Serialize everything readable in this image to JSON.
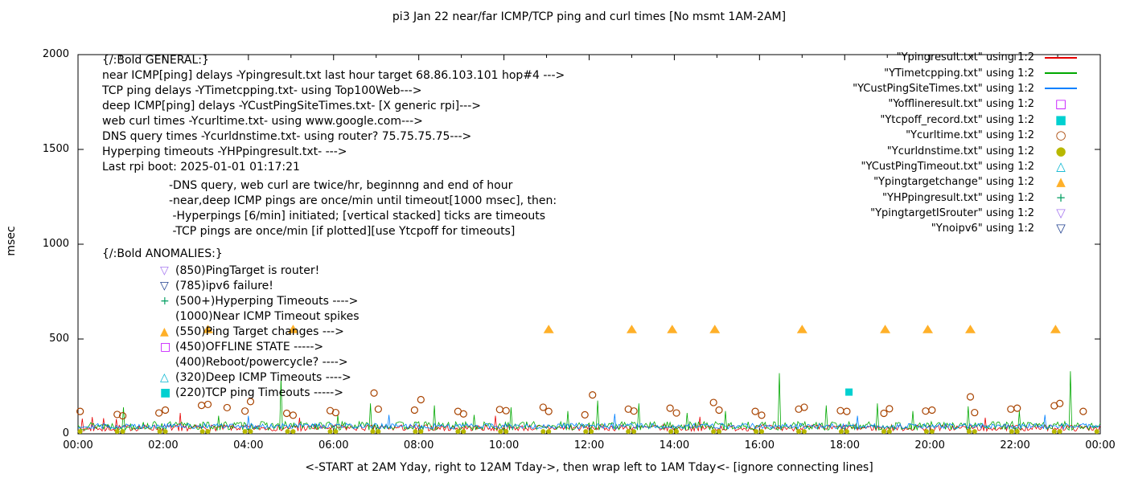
{
  "title": "pi3 Jan 22  near/far ICMP/TCP ping and curl times [No msmt 1AM-2AM]",
  "ylabel": "msec",
  "xlabel": "<-START at 2AM Yday, right to 12AM Tday->, then wrap left to 1AM Tday<- [ignore connecting lines]",
  "legend": [
    {
      "label": "\"Ypingresult.txt\" using 1:2",
      "marker": "line",
      "color": "#e60000"
    },
    {
      "label": "\"YTimetcpping.txt\" using 1:2",
      "marker": "line",
      "color": "#00a800"
    },
    {
      "label": "\"YCustPingSiteTimes.txt\" using 1:2",
      "marker": "line",
      "color": "#0080ff"
    },
    {
      "label": "\"Yofflineresult.txt\" using 1:2",
      "marker": "square-open",
      "color": "#c000ff"
    },
    {
      "label": "\"Ytcpoff_record.txt\" using 1:2",
      "marker": "square-filled",
      "color": "#00d0d0"
    },
    {
      "label": "\"Ycurltime.txt\" using 1:2",
      "marker": "circle-open",
      "color": "#a84300"
    },
    {
      "label": "\"Ycurldnstime.txt\" using 1:2",
      "marker": "circle-filled",
      "color": "#b8b800"
    },
    {
      "label": "\"YCustPingTimeout.txt\" using 1:2",
      "marker": "tri-up-open",
      "color": "#00b4d0"
    },
    {
      "label": "\"Ypingtargetchange\" using 1:2",
      "marker": "tri-up-filled",
      "color": "#ffb029"
    },
    {
      "label": "\"YHPpingresult.txt\" using 1:2",
      "marker": "plus",
      "color": "#009e60"
    },
    {
      "label": "\"YpingtargetISrouter\" using 1:2",
      "marker": "tri-down-open",
      "color": "#a678f0"
    },
    {
      "label": "\"Ynoipv6\" using 1:2",
      "marker": "tri-down-open",
      "color": "#1f3f8f"
    }
  ],
  "annotations": {
    "general": [
      "{/:Bold GENERAL:}",
      "near ICMP[ping] delays -Ypingresult.txt last hour target 68.86.103.101 hop#4 --->",
      "TCP ping delays -YTimetcpping.txt- using Top100Web--->",
      "deep ICMP[ping] delays -YCustPingSiteTimes.txt- [X generic rpi]--->",
      "web curl times -Ycurltime.txt- using www.google.com--->",
      "DNS query times -Ycurldnstime.txt- using router? 75.75.75.75--->",
      "Hyperping timeouts -YHPpingresult.txt- --->",
      "Last rpi boot: 2025-01-01 01:17:21"
    ],
    "notes": [
      "-DNS query, web curl are twice/hr, beginnng and end of hour",
      "-near,deep ICMP pings are once/min until timeout[1000 msec], then:",
      " -Hyperpings [6/min] initiated; [vertical stacked] ticks are timeouts",
      " -TCP pings are once/min [if plotted][use Ytcpoff for timeouts]"
    ],
    "anomalies_title": "{/:Bold ANOMALIES:}",
    "anomalies": [
      {
        "marker": "tri-down-open",
        "color": "#a678f0",
        "text": "(850)PingTarget is router!"
      },
      {
        "marker": "tri-down-open",
        "color": "#1f3f8f",
        "text": "(785)ipv6 failure!"
      },
      {
        "marker": "plus",
        "color": "#009e60",
        "text": "(500+)Hyperping Timeouts ---->"
      },
      {
        "marker": "none",
        "color": "#000000",
        "text": "(1000)Near ICMP Timeout spikes"
      },
      {
        "marker": "tri-up-filled",
        "color": "#ffb029",
        "text": "(550)Ping Target changes --->"
      },
      {
        "marker": "square-open",
        "color": "#c000ff",
        "text": "(450)OFFLINE STATE ----->"
      },
      {
        "marker": "none",
        "color": "#000000",
        "text": "(400)Reboot/powercycle? ---->"
      },
      {
        "marker": "tri-up-open",
        "color": "#00b4d0",
        "text": "(320)Deep ICMP Timeouts ---->"
      },
      {
        "marker": "square-filled",
        "color": "#00d0d0",
        "text": "(220)TCP ping Timeouts ----->"
      }
    ]
  },
  "chart_data": {
    "type": "line",
    "title": "pi3 Jan 22  near/far ICMP/TCP ping and curl times [No msmt 1AM-2AM]",
    "xlabel": "<-START at 2AM Yday, right to 12AM Tday->, then wrap left to 1AM Tday<- [ignore connecting lines]",
    "ylabel": "msec",
    "x_hours": [
      0,
      24
    ],
    "x_tick_labels": [
      "00:00",
      "02:00",
      "04:00",
      "06:00",
      "08:00",
      "10:00",
      "12:00",
      "14:00",
      "16:00",
      "18:00",
      "20:00",
      "22:00",
      "00:00"
    ],
    "ylim": [
      0,
      2000
    ],
    "y_ticks": [
      0,
      500,
      1000,
      1500,
      2000
    ],
    "grid": false,
    "legend_position": "top-right",
    "series": [
      {
        "name": "Ypingresult.txt",
        "kind": "noise-line",
        "color": "#e60000",
        "band": [
          15,
          48
        ],
        "seed": 7,
        "spikes": [
          [
            0.1,
            80
          ],
          [
            0.35,
            88
          ],
          [
            0.6,
            82
          ],
          [
            0.9,
            78
          ],
          [
            2.4,
            110
          ],
          [
            5.2,
            85
          ],
          [
            9.8,
            95
          ],
          [
            14.6,
            90
          ],
          [
            21.3,
            85
          ]
        ]
      },
      {
        "name": "YTimetcpping.txt",
        "kind": "noise-line",
        "color": "#00a800",
        "band": [
          20,
          65
        ],
        "seed": 13,
        "spikes": [
          [
            1.05,
            140
          ],
          [
            3.3,
            95
          ],
          [
            4.75,
            295
          ],
          [
            6.1,
            100
          ],
          [
            6.85,
            160
          ],
          [
            8.35,
            150
          ],
          [
            9.3,
            100
          ],
          [
            10.15,
            140
          ],
          [
            11.5,
            120
          ],
          [
            12.2,
            175
          ],
          [
            13.15,
            160
          ],
          [
            14.3,
            110
          ],
          [
            15.2,
            120
          ],
          [
            16.45,
            320
          ],
          [
            17.55,
            150
          ],
          [
            18.75,
            160
          ],
          [
            19.6,
            120
          ],
          [
            20.9,
            145
          ],
          [
            22.1,
            120
          ],
          [
            23.3,
            330
          ]
        ]
      },
      {
        "name": "YCustPingSiteTimes.txt",
        "kind": "noise-line",
        "color": "#0080ff",
        "band": [
          26,
          55
        ],
        "seed": 29,
        "spikes": [
          [
            4.0,
            95
          ],
          [
            7.3,
            100
          ],
          [
            12.6,
            105
          ],
          [
            18.3,
            95
          ],
          [
            22.7,
            100
          ]
        ]
      },
      {
        "name": "Ycurltime.txt",
        "kind": "scatter",
        "marker": "circle-open",
        "color": "#a84300",
        "points": [
          [
            0.05,
            118
          ],
          [
            0.92,
            102
          ],
          [
            1.05,
            95
          ],
          [
            1.9,
            110
          ],
          [
            2.05,
            125
          ],
          [
            2.9,
            150
          ],
          [
            3.05,
            155
          ],
          [
            3.5,
            138
          ],
          [
            3.92,
            120
          ],
          [
            4.05,
            170
          ],
          [
            4.9,
            108
          ],
          [
            5.05,
            98
          ],
          [
            5.92,
            122
          ],
          [
            6.05,
            112
          ],
          [
            6.95,
            215
          ],
          [
            7.05,
            130
          ],
          [
            7.9,
            125
          ],
          [
            8.05,
            180
          ],
          [
            8.92,
            118
          ],
          [
            9.05,
            105
          ],
          [
            9.9,
            128
          ],
          [
            10.05,
            122
          ],
          [
            10.92,
            140
          ],
          [
            11.05,
            118
          ],
          [
            11.9,
            100
          ],
          [
            12.08,
            205
          ],
          [
            12.92,
            130
          ],
          [
            13.05,
            120
          ],
          [
            13.9,
            135
          ],
          [
            14.05,
            110
          ],
          [
            14.92,
            165
          ],
          [
            15.05,
            125
          ],
          [
            15.9,
            118
          ],
          [
            16.05,
            98
          ],
          [
            16.92,
            130
          ],
          [
            17.05,
            140
          ],
          [
            17.9,
            122
          ],
          [
            18.05,
            118
          ],
          [
            18.92,
            108
          ],
          [
            19.05,
            132
          ],
          [
            19.9,
            120
          ],
          [
            20.05,
            125
          ],
          [
            20.95,
            195
          ],
          [
            21.05,
            112
          ],
          [
            21.9,
            130
          ],
          [
            22.05,
            135
          ],
          [
            22.92,
            148
          ],
          [
            23.05,
            160
          ],
          [
            23.6,
            118
          ]
        ]
      },
      {
        "name": "Ycurldnstime.txt",
        "kind": "scatter-pattern",
        "marker": "circle-filled",
        "color": "#b8b800",
        "pattern": {
          "hour_start": 0,
          "hour_end": 24,
          "offsets": [
            0.05,
            0.92
          ],
          "value": 12
        }
      },
      {
        "name": "Ypingtargetchange",
        "kind": "scatter",
        "marker": "tri-up-filled",
        "color": "#ffb029",
        "points": [
          [
            3.05,
            550
          ],
          [
            5.05,
            550
          ],
          [
            11.05,
            550
          ],
          [
            13.0,
            550
          ],
          [
            13.95,
            550
          ],
          [
            14.95,
            550
          ],
          [
            17.0,
            550
          ],
          [
            18.95,
            550
          ],
          [
            19.95,
            550
          ],
          [
            20.95,
            550
          ],
          [
            22.95,
            550
          ]
        ]
      },
      {
        "name": "Ytcpoff_record.txt",
        "kind": "scatter",
        "marker": "square-filled",
        "color": "#00d0d0",
        "points": [
          [
            18.1,
            220
          ]
        ]
      }
    ]
  }
}
